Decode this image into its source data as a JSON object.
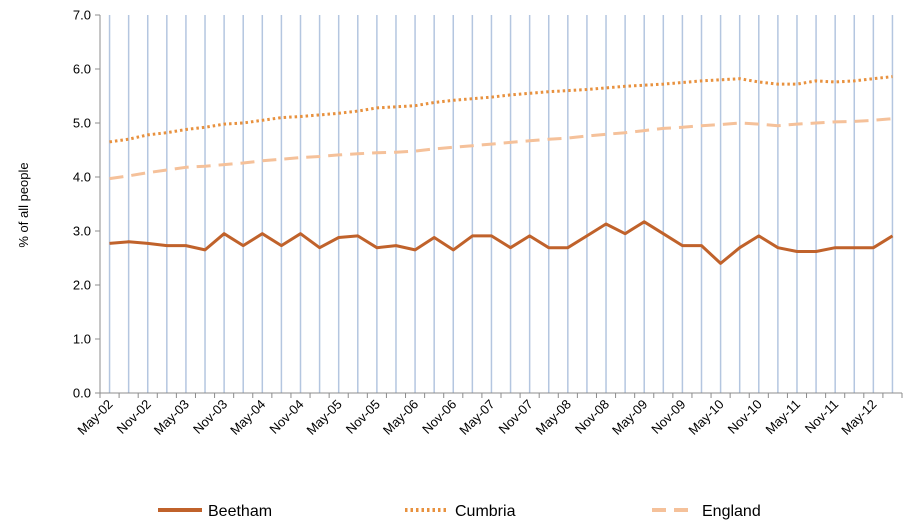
{
  "chart_data": {
    "type": "line",
    "ylabel": "% of all people",
    "xlabel": "",
    "ylim": [
      0,
      7
    ],
    "yticks": [
      "0.0",
      "1.0",
      "2.0",
      "3.0",
      "4.0",
      "5.0",
      "6.0",
      "7.0"
    ],
    "x": [
      "May-02",
      "Aug-02",
      "Nov-02",
      "Feb-03",
      "May-03",
      "Aug-03",
      "Nov-03",
      "Feb-04",
      "May-04",
      "Aug-04",
      "Nov-04",
      "Feb-05",
      "May-05",
      "Aug-05",
      "Nov-05",
      "Feb-06",
      "May-06",
      "Aug-06",
      "Nov-06",
      "Feb-07",
      "May-07",
      "Aug-07",
      "Nov-07",
      "Feb-08",
      "May-08",
      "Aug-08",
      "Nov-08",
      "Feb-09",
      "May-09",
      "Aug-09",
      "Nov-09",
      "Feb-10",
      "May-10",
      "Aug-10",
      "Nov-10",
      "Feb-11",
      "May-11",
      "Aug-11",
      "Nov-11",
      "Feb-12",
      "May-12",
      "Aug-12"
    ],
    "x_tick_labels": [
      "May-02",
      "Nov-02",
      "May-03",
      "Nov-03",
      "May-04",
      "Nov-04",
      "May-05",
      "Nov-05",
      "May-06",
      "Nov-06",
      "May-07",
      "Nov-07",
      "May-08",
      "Nov-08",
      "May-09",
      "Nov-09",
      "May-10",
      "Nov-10",
      "May-11",
      "Nov-11",
      "May-12"
    ],
    "grid": "vertical",
    "legend_position": "bottom",
    "series": [
      {
        "name": "Beetham",
        "style": "solid",
        "color": "#C0622B",
        "values": [
          2.77,
          2.8,
          2.77,
          2.73,
          2.73,
          2.65,
          2.95,
          2.73,
          2.95,
          2.73,
          2.95,
          2.69,
          2.88,
          2.91,
          2.69,
          2.73,
          2.65,
          2.88,
          2.65,
          2.91,
          2.91,
          2.69,
          2.91,
          2.69,
          2.69,
          2.91,
          3.13,
          2.95,
          3.17,
          2.95,
          2.73,
          2.73,
          2.4,
          2.69,
          2.91,
          2.69,
          2.62,
          2.62,
          2.69,
          2.69,
          2.69,
          2.91
        ]
      },
      {
        "name": "Cumbria",
        "style": "dotted",
        "color": "#E8913E",
        "values": [
          4.65,
          4.7,
          4.78,
          4.82,
          4.88,
          4.92,
          4.98,
          5.0,
          5.05,
          5.1,
          5.12,
          5.15,
          5.18,
          5.22,
          5.28,
          5.3,
          5.32,
          5.38,
          5.42,
          5.45,
          5.48,
          5.52,
          5.55,
          5.58,
          5.6,
          5.62,
          5.65,
          5.68,
          5.7,
          5.72,
          5.75,
          5.78,
          5.8,
          5.82,
          5.76,
          5.72,
          5.72,
          5.78,
          5.76,
          5.78,
          5.82,
          5.86
        ]
      },
      {
        "name": "England",
        "style": "dashed",
        "color": "#F5C19A",
        "values": [
          3.97,
          4.02,
          4.08,
          4.13,
          4.18,
          4.2,
          4.23,
          4.26,
          4.3,
          4.33,
          4.36,
          4.38,
          4.41,
          4.43,
          4.45,
          4.46,
          4.48,
          4.52,
          4.55,
          4.58,
          4.61,
          4.64,
          4.67,
          4.7,
          4.72,
          4.76,
          4.79,
          4.82,
          4.86,
          4.9,
          4.92,
          4.95,
          4.97,
          5.0,
          4.98,
          4.95,
          4.98,
          5.0,
          5.02,
          5.03,
          5.05,
          5.08
        ]
      }
    ]
  }
}
